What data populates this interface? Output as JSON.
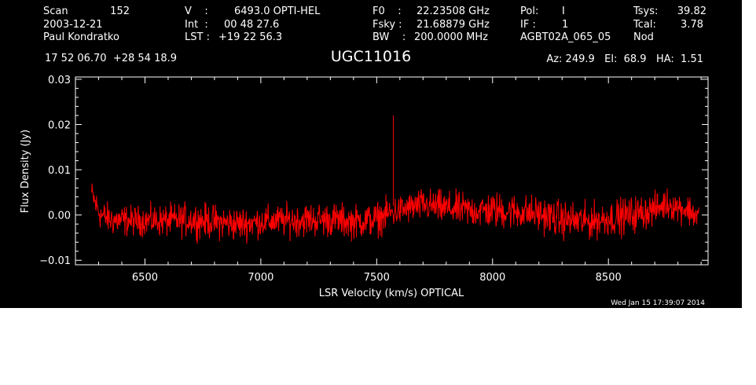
{
  "header": {
    "left": {
      "scan_label": "Scan",
      "scan_value": "152",
      "date": "2003-12-21",
      "observer": "Paul Kondratko"
    },
    "mid_left": {
      "v_label": "V    :",
      "v_value": "6493.0 OPTI-HEL",
      "int_label": "Int  :",
      "int_value": "00 48 27.6",
      "lst_label": "LST :",
      "lst_value": "+19 22 56.3"
    },
    "mid": {
      "f0_label": "F0    :",
      "f0_value": "22.23508 GHz",
      "fsky_label": "Fsky :",
      "fsky_value": "21.68879 GHz",
      "bw_label": "BW    :",
      "bw_value": "200.0000 MHz"
    },
    "mid_right": {
      "pol_label": "Pol:",
      "pol_value": "I",
      "if_label": "IF :",
      "if_value": "1",
      "project": "AGBT02A_065_05"
    },
    "right": {
      "tsys_label": "Tsys:",
      "tsys_value": "39.82",
      "tcal_label": "Tcal:",
      "tcal_value": "3.78",
      "mode": "Nod"
    },
    "coords": "17 52 06.70  +28 54 18.9",
    "source": "UGC11016",
    "pointing": "Az: 249.9   El:  68.9   HA:  1.51"
  },
  "footer": {
    "timestamp": "Wed Jan 15 17:39:07 2014"
  },
  "colors": {
    "background": "#000000",
    "axes": "#ffffff",
    "trace": "#ff0000",
    "page": "#ffffff"
  },
  "chart_data": {
    "type": "line",
    "xlabel": "LSR Velocity (km/s) OPTICAL",
    "ylabel": "Flux Density (Jy)",
    "xlim": [
      6200,
      8930
    ],
    "ylim": [
      -0.011,
      0.0305
    ],
    "xticks": [
      6500,
      7000,
      7500,
      8000,
      8500
    ],
    "xtick_labels": [
      "6500",
      "7000",
      "7500",
      "8000",
      "8500"
    ],
    "yticks": [
      -0.01,
      0.0,
      0.01,
      0.02,
      0.03
    ],
    "ytick_labels": [
      "−0.01",
      "0.00",
      "0.01",
      "0.02",
      "0.03"
    ],
    "grid": false,
    "series": [
      {
        "color": "#ff0000",
        "envelope": {
          "x": [
            6270,
            6290,
            6310,
            6350,
            6400,
            6450,
            6500,
            6600,
            6700,
            6800,
            6900,
            7000,
            7100,
            7200,
            7300,
            7400,
            7500,
            7550,
            7600,
            7700,
            7800,
            7900,
            8000,
            8100,
            8200,
            8300,
            8400,
            8500,
            8600,
            8700,
            8750,
            8800,
            8850,
            8890
          ],
          "upper": [
            0.009,
            0.007,
            0.005,
            0.004,
            0.004,
            0.0035,
            0.0035,
            0.004,
            0.0045,
            0.004,
            0.0035,
            0.0035,
            0.004,
            0.0045,
            0.0045,
            0.004,
            0.0045,
            0.0055,
            0.006,
            0.0075,
            0.007,
            0.0065,
            0.007,
            0.0065,
            0.006,
            0.005,
            0.0045,
            0.005,
            0.006,
            0.0065,
            0.0075,
            0.0065,
            0.006,
            0.0045
          ],
          "lower": [
            0.0005,
            -0.003,
            -0.005,
            -0.006,
            -0.0065,
            -0.006,
            -0.006,
            -0.0065,
            -0.0065,
            -0.007,
            -0.0075,
            -0.0065,
            -0.0065,
            -0.0065,
            -0.0065,
            -0.007,
            -0.0065,
            -0.005,
            -0.004,
            -0.003,
            -0.004,
            -0.0045,
            -0.005,
            -0.005,
            -0.0055,
            -0.007,
            -0.0075,
            -0.0065,
            -0.006,
            -0.004,
            -0.0025,
            -0.003,
            -0.004,
            -0.0055
          ]
        },
        "spike": {
          "x": 7572,
          "y": 0.022
        }
      }
    ]
  }
}
